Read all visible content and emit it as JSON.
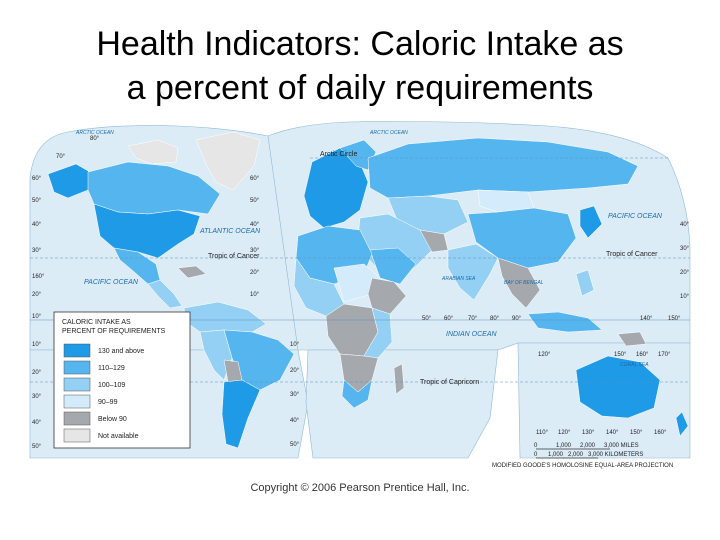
{
  "title": {
    "line1": "Health Indicators: Caloric Intake as",
    "line2": "a percent of daily requirements"
  },
  "map": {
    "oceans": {
      "arctic_ocean_1": "ARCTIC OCEAN",
      "arctic_ocean_2": "ARCTIC OCEAN",
      "atlantic": "ATLANTIC OCEAN",
      "pacific_east": "PACIFIC OCEAN",
      "pacific_west": "PACIFIC OCEAN",
      "indian": "INDIAN OCEAN",
      "arabian_sea": "ARABIAN SEA",
      "bay_of_bengal": "BAY OF BENGAL",
      "coral_sea": "CORAL SEA"
    },
    "lines": {
      "arctic_circle": "Arctic Circle",
      "tropic_cancer_west": "Tropic of Cancer",
      "tropic_cancer_east": "Tropic of Cancer",
      "tropic_capricorn": "Tropic of Capricorn"
    },
    "lat_labels_left": [
      "70°",
      "60°",
      "50°",
      "40°",
      "30°",
      "20°",
      "10°",
      "0°",
      "10°",
      "20°",
      "30°",
      "40°",
      "50°"
    ],
    "lat_labels_mid": [
      "60°",
      "50°",
      "40°",
      "30°",
      "20°",
      "10°",
      "10°",
      "20°",
      "30°",
      "40°",
      "50°"
    ],
    "lat_labels_right": [
      "40°",
      "30°",
      "20°",
      "10°"
    ],
    "lon_labels": [
      "80°",
      "160°",
      "50°",
      "60°",
      "70°",
      "80°",
      "90°",
      "140°",
      "150°",
      "120°",
      "150°",
      "160°",
      "170°",
      "110°",
      "120°",
      "130°",
      "140°",
      "150°",
      "160°"
    ],
    "scale": {
      "miles": [
        "0",
        "1,000",
        "2,000",
        "3,000 MILES"
      ],
      "km": [
        "0",
        "1,000",
        "2,000",
        "3,000 KILOMETERS"
      ],
      "projection": "MODIFIED GOODE'S HOMOLOSINE EQUAL-AREA PROJECTION"
    },
    "colors": {
      "ocean": "#dcecf7",
      "c130": "#1f9ae6",
      "c110": "#55b6ef",
      "c100": "#94d0f4",
      "c90": "#d3ebfa",
      "below90": "#a5a9ad",
      "na": "#e6e6e6"
    }
  },
  "legend": {
    "title_line1": "CALORIC INTAKE AS",
    "title_line2": "PERCENT OF REQUIREMENTS",
    "items": [
      {
        "label": "130 and above",
        "color": "#1f9ae6"
      },
      {
        "label": "110–129",
        "color": "#55b6ef"
      },
      {
        "label": "100–109",
        "color": "#94d0f4"
      },
      {
        "label": "90–99",
        "color": "#d3ebfa"
      },
      {
        "label": "Below 90",
        "color": "#a5a9ad"
      },
      {
        "label": "Not available",
        "color": "#e6e6e6"
      }
    ]
  },
  "copyright": "Copyright © 2006 Pearson Prentice Hall, Inc."
}
